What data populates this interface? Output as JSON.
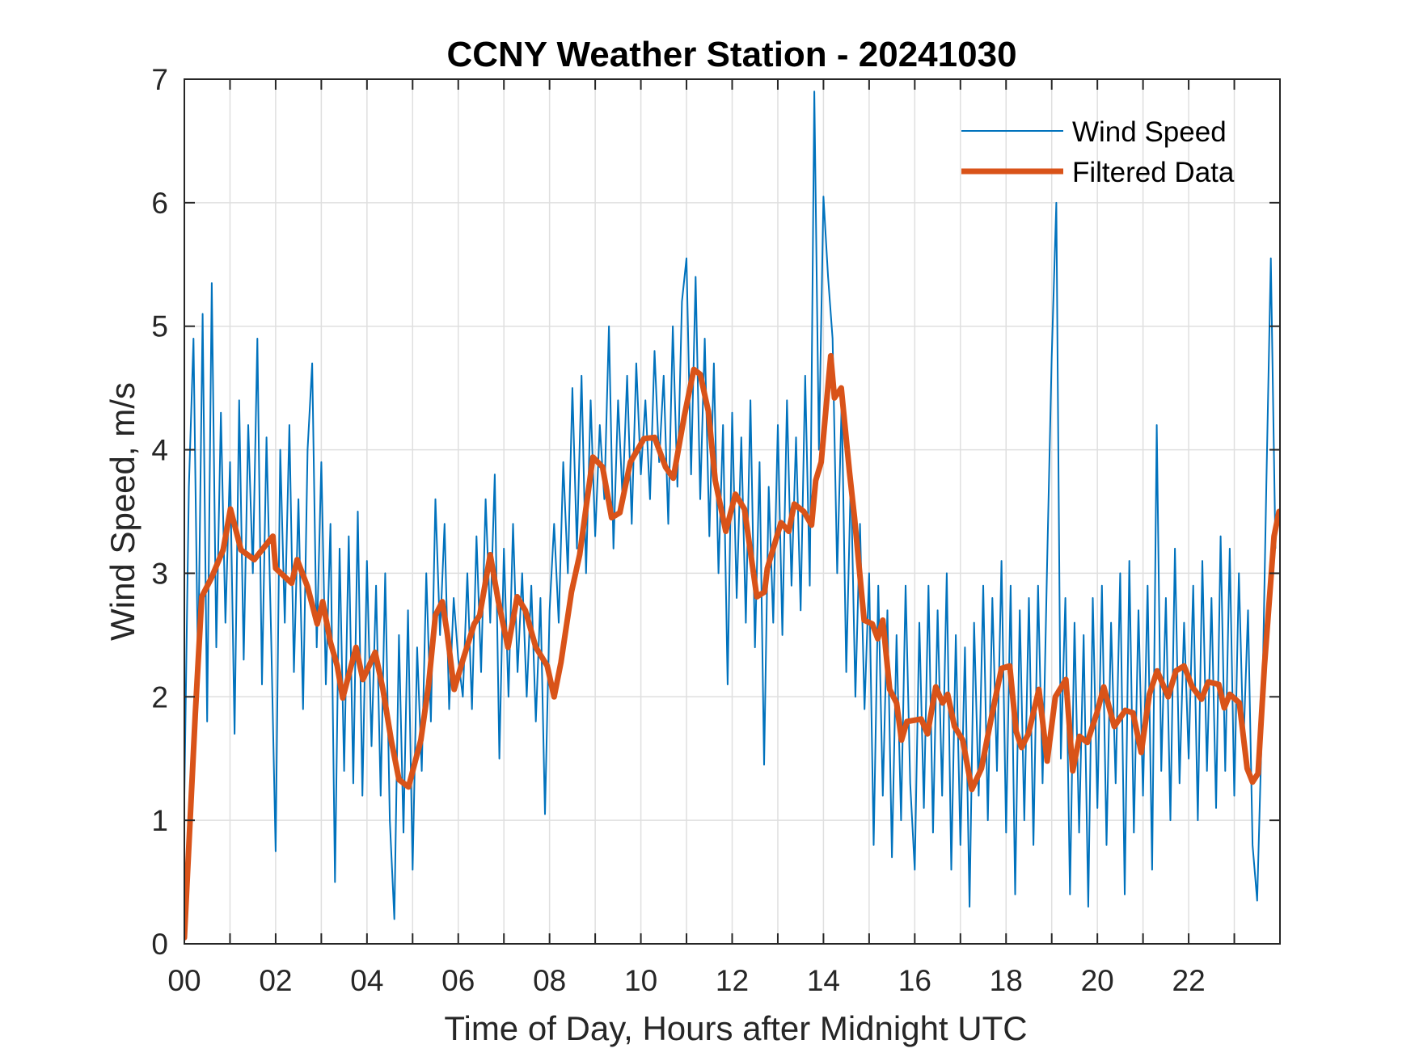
{
  "chart_data": {
    "type": "line",
    "title": "CCNY Weather Station - 20241030",
    "xlabel": "Time of Day, Hours after Midnight UTC",
    "ylabel": "Wind Speed, m/s",
    "xlim": [
      0,
      24
    ],
    "ylim": [
      0,
      7
    ],
    "grid": true,
    "legend_position": "top-right",
    "x_ticks": [
      0,
      2,
      4,
      6,
      8,
      10,
      12,
      14,
      16,
      18,
      20,
      22
    ],
    "x_tick_labels": [
      "00",
      "02",
      "04",
      "06",
      "08",
      "10",
      "12",
      "14",
      "16",
      "18",
      "20",
      "22"
    ],
    "x_minor_grid_step_hours": 1,
    "y_ticks": [
      0,
      1,
      2,
      3,
      4,
      5,
      6,
      7
    ],
    "y_tick_labels": [
      "0",
      "1",
      "2",
      "3",
      "4",
      "5",
      "6",
      "7"
    ],
    "series": [
      {
        "name": "Wind Speed",
        "color": "#0072BD",
        "x_start": 0,
        "x_step": 0.1,
        "values": [
          1.2,
          3.7,
          4.9,
          2.2,
          5.1,
          1.8,
          5.35,
          2.4,
          4.3,
          2.6,
          3.9,
          1.7,
          4.4,
          2.3,
          4.2,
          3.0,
          4.9,
          2.1,
          4.1,
          2.5,
          0.75,
          4.0,
          2.6,
          4.2,
          2.2,
          3.6,
          1.9,
          4.0,
          4.7,
          2.4,
          3.9,
          2.1,
          3.4,
          0.5,
          3.2,
          1.4,
          3.3,
          1.3,
          3.5,
          1.2,
          3.1,
          1.6,
          2.9,
          1.2,
          3.0,
          1.0,
          0.2,
          2.5,
          0.9,
          2.7,
          0.6,
          2.4,
          1.4,
          3.0,
          1.8,
          3.6,
          2.5,
          3.4,
          1.9,
          2.8,
          2.3,
          2.0,
          3.0,
          1.9,
          3.3,
          2.2,
          3.6,
          2.6,
          3.8,
          1.5,
          3.2,
          2.0,
          3.4,
          2.2,
          3.0,
          2.0,
          2.9,
          1.8,
          2.8,
          1.05,
          2.7,
          3.4,
          2.6,
          3.9,
          3.0,
          4.5,
          3.2,
          4.6,
          3.0,
          4.4,
          3.3,
          4.2,
          3.6,
          5.0,
          3.2,
          4.4,
          3.6,
          4.6,
          3.4,
          4.7,
          3.8,
          4.4,
          3.6,
          4.8,
          3.9,
          4.6,
          3.4,
          5.0,
          3.7,
          5.2,
          5.55,
          3.8,
          5.4,
          3.6,
          4.9,
          3.3,
          4.7,
          3.0,
          4.2,
          2.1,
          4.3,
          2.8,
          4.1,
          2.6,
          4.4,
          2.4,
          3.9,
          1.45,
          3.7,
          2.6,
          4.2,
          2.5,
          4.4,
          2.9,
          4.1,
          2.7,
          4.6,
          2.9,
          6.9,
          4.0,
          6.05,
          5.4,
          4.9,
          3.0,
          4.4,
          2.2,
          3.8,
          2.0,
          3.4,
          1.9,
          3.0,
          0.8,
          2.9,
          1.2,
          2.7,
          0.7,
          2.5,
          1.0,
          2.9,
          1.3,
          0.6,
          2.6,
          1.1,
          2.9,
          0.9,
          2.7,
          1.2,
          3.0,
          0.6,
          2.5,
          0.8,
          2.4,
          0.3,
          2.6,
          1.2,
          2.9,
          1.0,
          2.8,
          1.4,
          3.1,
          0.9,
          2.9,
          0.4,
          2.7,
          1.0,
          2.8,
          0.8,
          2.9,
          1.3,
          3.1,
          4.75,
          6.0,
          1.5,
          2.8,
          0.4,
          2.6,
          0.9,
          2.5,
          0.3,
          2.8,
          1.1,
          2.9,
          0.8,
          2.6,
          1.3,
          3.0,
          0.4,
          3.1,
          0.9,
          2.7,
          1.2,
          2.9,
          0.6,
          4.2,
          1.4,
          2.8,
          1.0,
          3.2,
          1.3,
          2.6,
          1.5,
          2.9,
          1.0,
          3.1,
          1.4,
          2.8,
          1.1,
          3.3,
          1.4,
          3.2,
          1.2,
          3.0,
          1.6,
          2.7,
          0.8,
          0.35,
          1.7,
          3.7,
          5.55,
          3.2
        ]
      },
      {
        "name": "Filtered Data",
        "color": "#D95319",
        "x": [
          0,
          0.24,
          0.38,
          0.59,
          0.85,
          1.01,
          1.24,
          1.53,
          1.94,
          2.0,
          2.35,
          2.47,
          2.7,
          2.91,
          3.03,
          3.2,
          3.35,
          3.47,
          3.76,
          3.91,
          4.18,
          4.35,
          4.53,
          4.7,
          4.91,
          5.18,
          5.35,
          5.5,
          5.65,
          5.76,
          5.91,
          6.12,
          6.35,
          6.47,
          6.7,
          6.88,
          7.09,
          7.29,
          7.47,
          7.7,
          7.95,
          8.1,
          8.25,
          8.48,
          8.66,
          8.95,
          9.16,
          9.36,
          9.54,
          9.77,
          10.07,
          10.3,
          10.54,
          10.71,
          10.95,
          11.16,
          11.3,
          11.48,
          11.63,
          11.86,
          12.07,
          12.27,
          12.54,
          12.71,
          12.77,
          13.07,
          13.24,
          13.36,
          13.57,
          13.74,
          13.83,
          13.95,
          14.16,
          14.24,
          14.39,
          14.57,
          14.68,
          14.89,
          15.07,
          15.19,
          15.3,
          15.45,
          15.6,
          15.71,
          15.83,
          16.14,
          16.28,
          16.46,
          16.61,
          16.72,
          16.87,
          17.05,
          17.25,
          17.46,
          17.66,
          17.9,
          18.08,
          18.22,
          18.34,
          18.49,
          18.72,
          18.9,
          19.08,
          19.31,
          19.46,
          19.61,
          19.78,
          19.99,
          20.14,
          20.37,
          20.61,
          20.78,
          20.96,
          21.14,
          21.31,
          21.55,
          21.72,
          21.9,
          22.08,
          22.28,
          22.43,
          22.66,
          22.78,
          22.9,
          23.11,
          23.28,
          23.4,
          23.52,
          23.66,
          23.87,
          23.98
        ],
        "values": [
          0.05,
          1.87,
          2.81,
          2.96,
          3.19,
          3.52,
          3.19,
          3.11,
          3.3,
          3.04,
          2.92,
          3.11,
          2.89,
          2.59,
          2.77,
          2.44,
          2.25,
          1.99,
          2.4,
          2.14,
          2.36,
          2.06,
          1.65,
          1.33,
          1.27,
          1.65,
          2.1,
          2.66,
          2.77,
          2.51,
          2.06,
          2.32,
          2.59,
          2.66,
          3.15,
          2.77,
          2.4,
          2.81,
          2.7,
          2.4,
          2.25,
          2.0,
          2.28,
          2.85,
          3.15,
          3.94,
          3.86,
          3.45,
          3.49,
          3.9,
          4.09,
          4.1,
          3.86,
          3.77,
          4.27,
          4.65,
          4.61,
          4.31,
          3.75,
          3.34,
          3.64,
          3.52,
          2.81,
          2.85,
          3.04,
          3.41,
          3.34,
          3.56,
          3.5,
          3.39,
          3.75,
          3.9,
          4.76,
          4.42,
          4.5,
          3.82,
          3.45,
          2.62,
          2.59,
          2.47,
          2.62,
          2.06,
          1.95,
          1.65,
          1.8,
          1.82,
          1.7,
          2.08,
          1.95,
          2.02,
          1.76,
          1.65,
          1.25,
          1.42,
          1.8,
          2.23,
          2.25,
          1.72,
          1.59,
          1.7,
          2.06,
          1.48,
          2.0,
          2.14,
          1.4,
          1.68,
          1.63,
          1.87,
          2.08,
          1.76,
          1.89,
          1.87,
          1.55,
          2.02,
          2.21,
          2.0,
          2.21,
          2.25,
          2.08,
          1.98,
          2.12,
          2.1,
          1.91,
          2.02,
          1.95,
          1.42,
          1.31,
          1.38,
          2.25,
          3.3,
          3.5
        ]
      }
    ]
  }
}
